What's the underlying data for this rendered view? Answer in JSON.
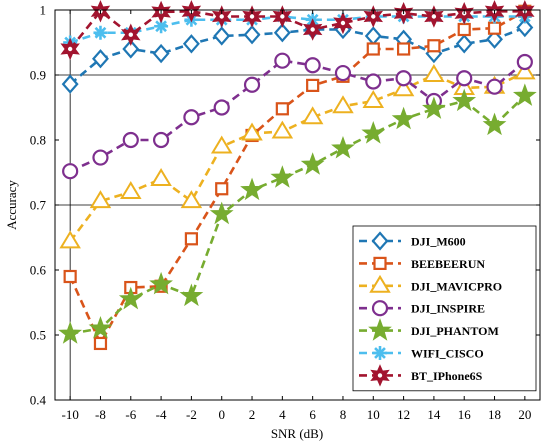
{
  "chart_data": {
    "type": "line",
    "title": "",
    "xlabel": "SNR (dB)",
    "ylabel": "Accuracy",
    "xlim": [
      -11,
      21
    ],
    "ylim": [
      0.4,
      1.0
    ],
    "xticks": [
      -10,
      -8,
      -6,
      -4,
      -2,
      0,
      2,
      4,
      6,
      8,
      10,
      12,
      14,
      16,
      18,
      20
    ],
    "yticks": [
      0.4,
      0.5,
      0.6,
      0.7,
      0.8,
      0.9,
      1.0
    ],
    "ytick_labels": [
      "0.4",
      "0.5",
      "0.6",
      "0.7",
      "0.8",
      "0.9",
      "1"
    ],
    "grid_lines_y": [
      0.7,
      0.9
    ],
    "grid_lines_x": [
      -10
    ],
    "legend_position": "bottom-right",
    "x": [
      -10,
      -8,
      -6,
      -4,
      -2,
      0,
      2,
      4,
      6,
      8,
      10,
      12,
      14,
      16,
      18,
      20
    ],
    "series": [
      {
        "name": "DJI_M600",
        "color": "#1f77b4",
        "marker": "diamond",
        "values": [
          0.886,
          0.925,
          0.94,
          0.933,
          0.948,
          0.96,
          0.962,
          0.965,
          0.97,
          0.97,
          0.96,
          0.955,
          0.933,
          0.948,
          0.955,
          0.973
        ]
      },
      {
        "name": "BEEBEERUN",
        "color": "#d9541a",
        "marker": "square",
        "values": [
          0.59,
          0.487,
          0.573,
          0.575,
          0.648,
          0.725,
          0.807,
          0.848,
          0.884,
          0.898,
          0.94,
          0.94,
          0.945,
          0.97,
          0.972,
          0.998
        ]
      },
      {
        "name": "DJI_MAVICPRO",
        "color": "#edb120",
        "marker": "triangle",
        "values": [
          0.644,
          0.706,
          0.72,
          0.74,
          0.706,
          0.79,
          0.81,
          0.813,
          0.835,
          0.852,
          0.86,
          0.878,
          0.9,
          0.88,
          0.882,
          0.904
        ]
      },
      {
        "name": "DJI_INSPIRE",
        "color": "#7e2f8e",
        "marker": "circle",
        "values": [
          0.752,
          0.773,
          0.8,
          0.8,
          0.835,
          0.85,
          0.885,
          0.922,
          0.915,
          0.903,
          0.89,
          0.895,
          0.86,
          0.895,
          0.882,
          0.92
        ]
      },
      {
        "name": "DJI_PHANTOM",
        "color": "#77ac30",
        "marker": "star5",
        "values": [
          0.502,
          0.51,
          0.555,
          0.578,
          0.56,
          0.686,
          0.723,
          0.742,
          0.762,
          0.787,
          0.81,
          0.832,
          0.848,
          0.86,
          0.823,
          0.868
        ]
      },
      {
        "name": "WIFI_CISCO",
        "color": "#4dbeee",
        "marker": "asterisk",
        "values": [
          0.95,
          0.965,
          0.965,
          0.975,
          0.985,
          0.985,
          0.985,
          0.99,
          0.985,
          0.985,
          0.99,
          0.99,
          0.99,
          0.99,
          0.99,
          0.99
        ]
      },
      {
        "name": "BT_IPhone6S",
        "color": "#a2142f",
        "marker": "star6",
        "values": [
          0.94,
          0.998,
          0.962,
          0.997,
          0.998,
          0.99,
          0.99,
          0.99,
          0.97,
          0.98,
          0.99,
          0.995,
          0.99,
          0.995,
          0.998,
          0.998
        ]
      }
    ]
  }
}
